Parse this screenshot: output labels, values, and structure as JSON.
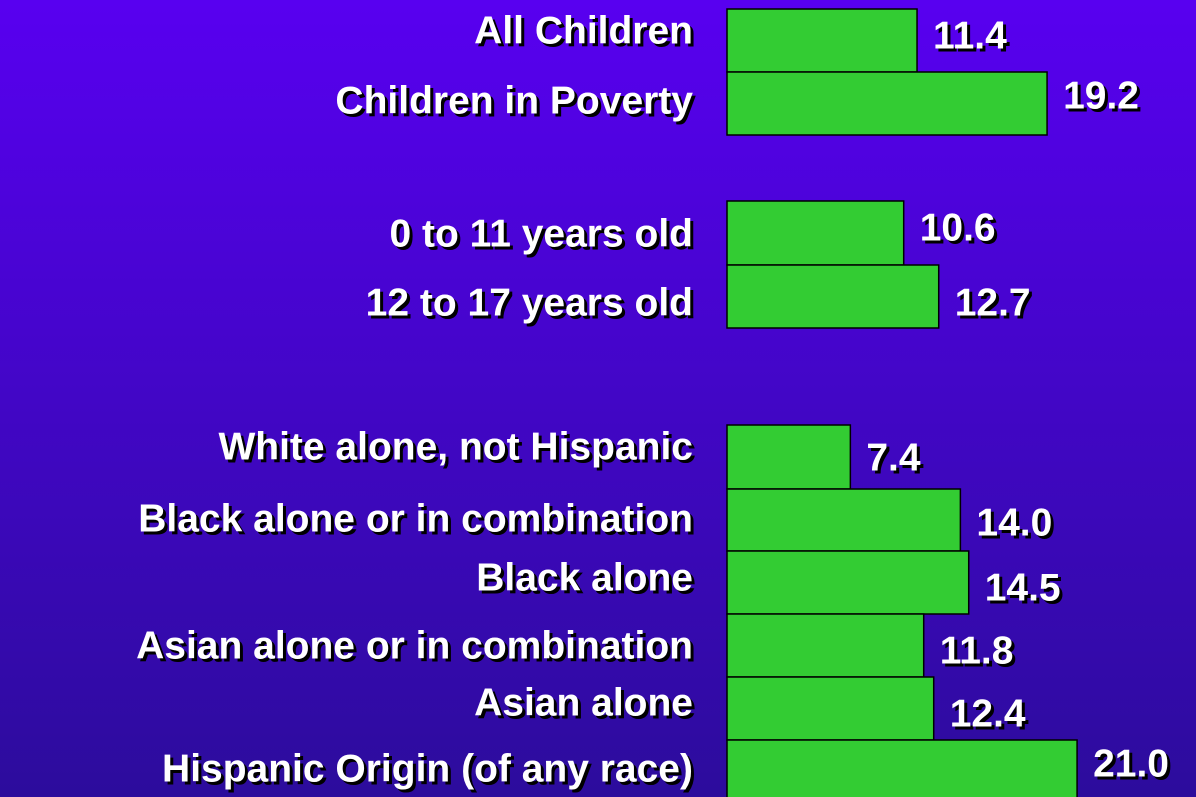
{
  "chart_data": {
    "type": "bar",
    "orientation": "horizontal",
    "categories": [
      "All Children",
      "Children in Poverty",
      "0 to 11 years old",
      "12 to 17 years old",
      "White alone, not Hispanic",
      "Black alone or in combination",
      "Black alone",
      "Asian alone or in combination",
      "Asian alone",
      "Hispanic Origin (of any race)"
    ],
    "values": [
      11.4,
      19.2,
      10.6,
      12.7,
      7.4,
      14.0,
      14.5,
      11.8,
      12.4,
      21.0
    ],
    "value_labels": [
      "11.4",
      "19.2",
      "10.6",
      "12.7",
      "7.4",
      "14.0",
      "14.5",
      "11.8",
      "12.4",
      "21.0"
    ],
    "color": "#33cc33"
  }
}
